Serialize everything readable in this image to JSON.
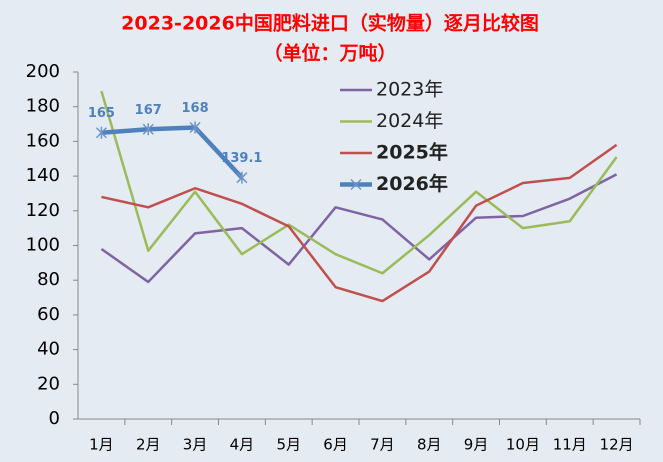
{
  "chart_data": {
    "type": "line",
    "title": "2023-2026中国肥料进口（实物量）逐月比较图",
    "subtitle": "（单位：万吨）",
    "categories": [
      "1月",
      "2月",
      "3月",
      "4月",
      "5月",
      "6月",
      "7月",
      "8月",
      "9月",
      "10月",
      "11月",
      "12月"
    ],
    "series": [
      {
        "name": "2023年",
        "color": "#8064a2",
        "values": [
          98,
          79,
          107,
          110,
          89,
          122,
          115,
          92,
          116,
          117,
          127,
          141
        ]
      },
      {
        "name": "2024年",
        "color": "#9bbb59",
        "values": [
          189,
          97,
          131,
          95,
          112,
          95,
          84,
          106,
          131,
          110,
          114,
          151
        ]
      },
      {
        "name": "2025年",
        "color": "#c0504d",
        "values": [
          128,
          122,
          133,
          124,
          111,
          76,
          68,
          85,
          123,
          136,
          139,
          158
        ]
      },
      {
        "name": "2026年",
        "color": "#4f81bd",
        "values": [
          165,
          167,
          168,
          139.1,
          null,
          null,
          null,
          null,
          null,
          null,
          null,
          null
        ]
      }
    ],
    "ylim": [
      0,
      200
    ],
    "yticks": [
      0,
      20,
      40,
      60,
      80,
      100,
      120,
      140,
      160,
      180,
      200
    ],
    "grid": false
  }
}
